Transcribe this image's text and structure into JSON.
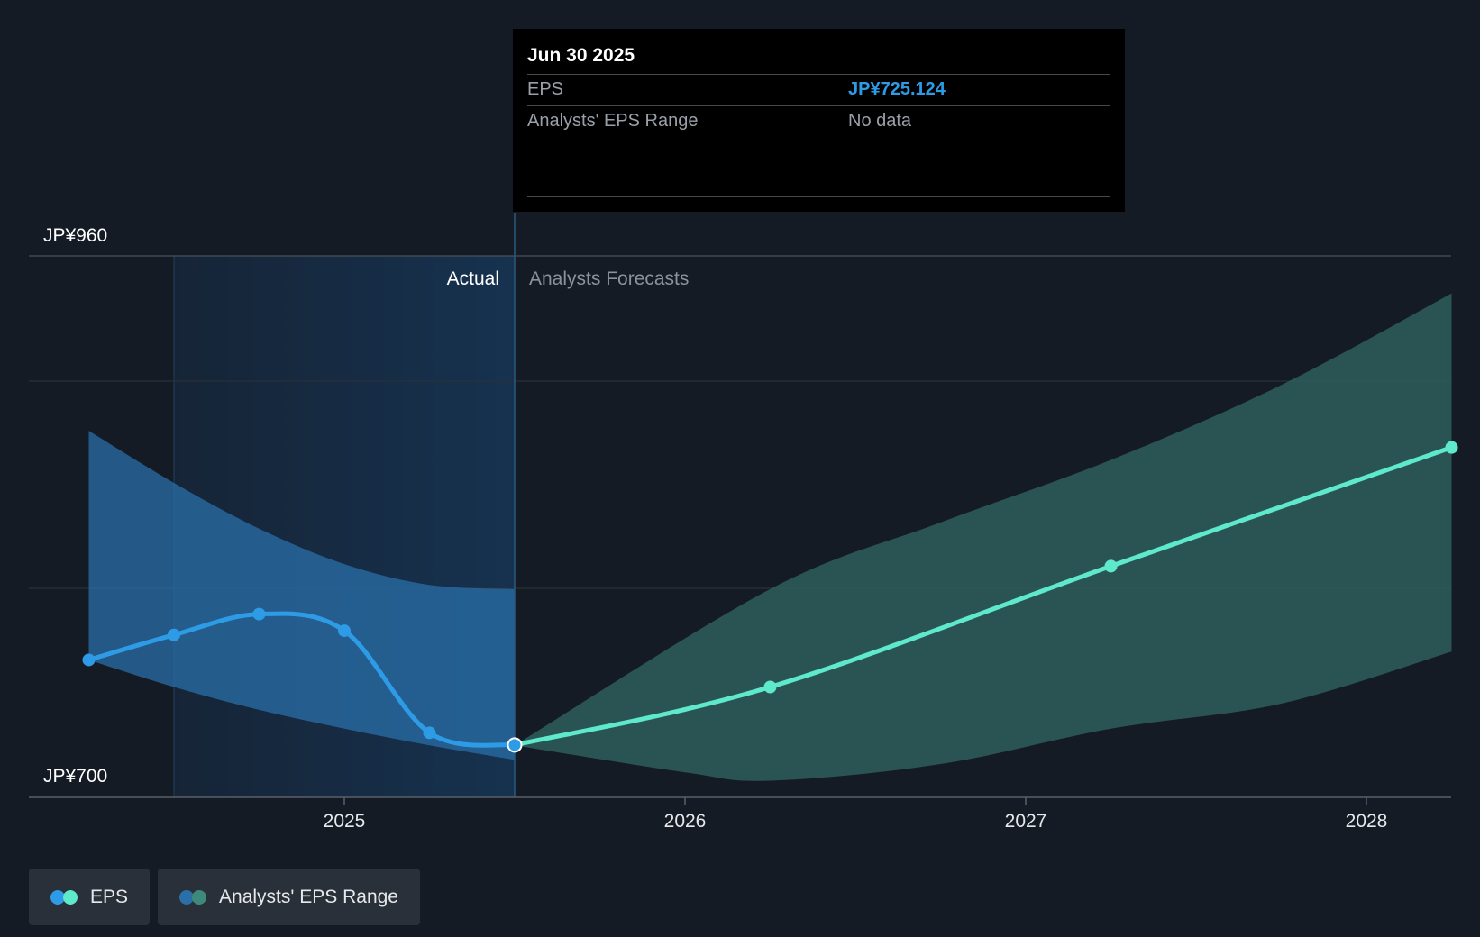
{
  "chart_data": {
    "type": "line",
    "y_axis": {
      "top_label": "JP¥960",
      "bottom_label": "JP¥700",
      "ylim": [
        700,
        960
      ]
    },
    "x_axis": {
      "ticks": [
        "2025",
        "2026",
        "2027",
        "2028"
      ],
      "tick_years": [
        2025,
        2026,
        2027,
        2028
      ],
      "xlim": [
        2024.15,
        2028.25
      ]
    },
    "regions": {
      "actual_label": "Actual",
      "forecast_label": "Analysts Forecasts",
      "split_x": 2025.5
    },
    "series": [
      {
        "name": "EPS",
        "segment": "actual",
        "color": "#2e9be6",
        "points": [
          {
            "x": 2024.25,
            "y": 766
          },
          {
            "x": 2024.5,
            "y": 778
          },
          {
            "x": 2024.75,
            "y": 788
          },
          {
            "x": 2025.0,
            "y": 780
          },
          {
            "x": 2025.25,
            "y": 731
          },
          {
            "x": 2025.5,
            "y": 725.124
          }
        ]
      },
      {
        "name": "EPS",
        "segment": "forecast",
        "color": "#5ee8cc",
        "points": [
          {
            "x": 2025.5,
            "y": 725.124
          },
          {
            "x": 2026.25,
            "y": 753
          },
          {
            "x": 2027.25,
            "y": 811
          },
          {
            "x": 2028.25,
            "y": 868
          }
        ]
      }
    ],
    "range_band": {
      "name": "Analysts' EPS Range",
      "actual_color": "#2a6fa8",
      "forecast_color": "#2e5e5c",
      "actual": {
        "upper": [
          [
            2024.25,
            876
          ],
          [
            2024.5,
            851
          ],
          [
            2024.75,
            829
          ],
          [
            2025.0,
            812
          ],
          [
            2025.25,
            802
          ],
          [
            2025.5,
            800
          ]
        ],
        "lower": [
          [
            2024.25,
            766
          ],
          [
            2024.5,
            753
          ],
          [
            2024.75,
            742
          ],
          [
            2025.0,
            733
          ],
          [
            2025.25,
            725
          ],
          [
            2025.5,
            718
          ]
        ]
      },
      "forecast": {
        "upper": [
          [
            2025.5,
            725
          ],
          [
            2026.25,
            800
          ],
          [
            2026.75,
            832
          ],
          [
            2027.25,
            862
          ],
          [
            2027.75,
            898
          ],
          [
            2028.25,
            942
          ]
        ],
        "lower": [
          [
            2025.5,
            725
          ],
          [
            2026.0,
            712
          ],
          [
            2026.25,
            708
          ],
          [
            2026.75,
            716
          ],
          [
            2027.25,
            733
          ],
          [
            2027.75,
            745
          ],
          [
            2028.25,
            770
          ]
        ]
      }
    }
  },
  "tooltip": {
    "date": "Jun 30 2025",
    "rows": [
      {
        "label": "EPS",
        "value": "JP¥725.124"
      },
      {
        "label": "Analysts' EPS Range",
        "value": "No data"
      }
    ]
  },
  "legend": [
    {
      "label": "EPS",
      "colors": [
        "#2e9be6",
        "#5ee8cc"
      ]
    },
    {
      "label": "Analysts' EPS Range",
      "colors": [
        "#2a6fa8",
        "#3d8a7d"
      ]
    }
  ]
}
